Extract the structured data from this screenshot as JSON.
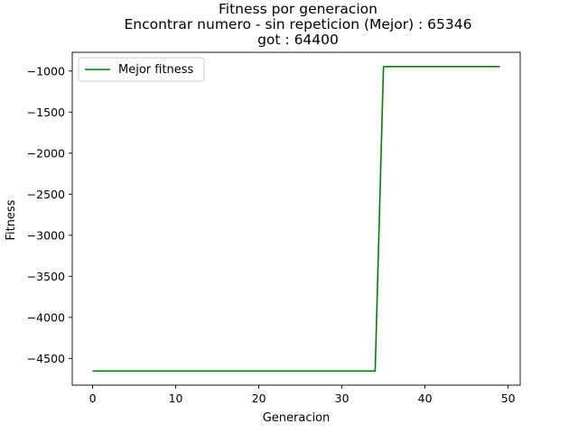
{
  "chart_data": {
    "type": "line",
    "title_lines": [
      "Fitness por generacion",
      "Encontrar numero - sin repeticion (Mejor) : 65346",
      "got : 64400"
    ],
    "xlabel": "Generacion",
    "ylabel": "Fitness",
    "xlim": [
      -2.45,
      51.45
    ],
    "ylim": [
      -4826,
      -772
    ],
    "xticks": [
      0,
      10,
      20,
      30,
      40,
      50
    ],
    "yticks": [
      -4500,
      -4000,
      -3500,
      -3000,
      -2500,
      -2000,
      -1500,
      -1000
    ],
    "grid": false,
    "legend_position": "top-left",
    "series": [
      {
        "name": "Mejor fitness",
        "color": "#008000",
        "x": [
          0,
          1,
          2,
          3,
          4,
          5,
          6,
          7,
          8,
          9,
          10,
          11,
          12,
          13,
          14,
          15,
          16,
          17,
          18,
          19,
          20,
          21,
          22,
          23,
          24,
          25,
          26,
          27,
          28,
          29,
          30,
          31,
          32,
          33,
          34,
          35,
          36,
          37,
          38,
          39,
          40,
          41,
          42,
          43,
          44,
          45,
          46,
          47,
          48,
          49
        ],
        "y": [
          -4654,
          -4654,
          -4654,
          -4654,
          -4654,
          -4654,
          -4654,
          -4654,
          -4654,
          -4654,
          -4654,
          -4654,
          -4654,
          -4654,
          -4654,
          -4654,
          -4654,
          -4654,
          -4654,
          -4654,
          -4654,
          -4654,
          -4654,
          -4654,
          -4654,
          -4654,
          -4654,
          -4654,
          -4654,
          -4654,
          -4654,
          -4654,
          -4654,
          -4654,
          -4654,
          -946,
          -946,
          -946,
          -946,
          -946,
          -946,
          -946,
          -946,
          -946,
          -946,
          -946,
          -946,
          -946,
          -946,
          -946
        ]
      }
    ]
  }
}
